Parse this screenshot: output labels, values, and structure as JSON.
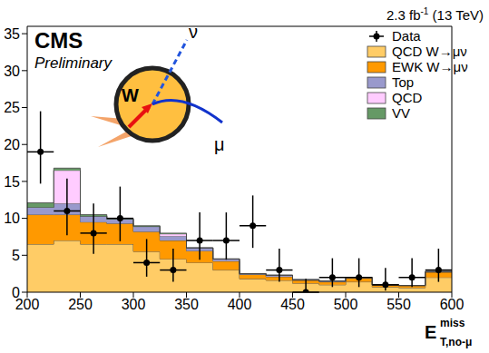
{
  "chart_data": {
    "type": "histogram",
    "title": "CMS",
    "subtitle": "Preliminary",
    "lumi": {
      "text": "2.3 fb",
      "superscript": "-1",
      "suffix": " (13 TeV)"
    },
    "x_label": {
      "text": "E",
      "superscript": "miss",
      "subscript": "T,no-μ"
    },
    "annotations": {
      "boson": "W",
      "neutrino": "ν",
      "muon": "μ"
    },
    "bins": [
      200,
      225,
      250,
      275,
      300,
      325,
      350,
      375,
      400,
      425,
      450,
      475,
      500,
      525,
      550,
      575,
      600
    ],
    "stacked": true,
    "grid": false,
    "legend": "upper right",
    "xlim": [
      200,
      600
    ],
    "xticks": [
      200,
      250,
      300,
      350,
      400,
      450,
      500,
      550,
      600
    ],
    "ylim": [
      0,
      36
    ],
    "yticks": [
      0,
      5,
      10,
      15,
      20,
      25,
      30,
      35
    ],
    "series": [
      {
        "name": "Data",
        "type": "scatter",
        "marker": "circle",
        "color": "#000000",
        "values": [
          19,
          11,
          8,
          10,
          4,
          3,
          7,
          7,
          9,
          3,
          0,
          2,
          2,
          1,
          2,
          3
        ],
        "errors": [
          [
            4.3,
            5.5
          ],
          [
            3.3,
            4.4
          ],
          [
            2.8,
            4.0
          ],
          [
            3.1,
            4.3
          ],
          [
            1.9,
            3.2
          ],
          [
            1.6,
            2.9
          ],
          [
            2.6,
            3.8
          ],
          [
            2.6,
            3.8
          ],
          [
            3.0,
            4.1
          ],
          [
            1.6,
            2.9
          ],
          [
            0,
            1.8
          ],
          [
            1.3,
            2.6
          ],
          [
            1.3,
            2.6
          ],
          [
            0.8,
            2.3
          ],
          [
            1.3,
            2.6
          ],
          [
            1.6,
            2.9
          ]
        ]
      },
      {
        "name": "QCD W→μν",
        "type": "area",
        "color": "#ffcc66",
        "values": [
          6.5,
          7.0,
          6.5,
          6.5,
          5.5,
          4.5,
          4.0,
          3.0,
          1.8,
          1.6,
          1.2,
          1.0,
          1.4,
          0.7,
          0.6,
          2.0
        ]
      },
      {
        "name": "EWK W→μν",
        "type": "area",
        "color": "#ff9900",
        "values": [
          4.0,
          3.5,
          3.0,
          2.8,
          2.7,
          2.5,
          1.6,
          1.2,
          0.6,
          0.5,
          0.4,
          0.4,
          0.5,
          0.3,
          0.3,
          0.7
        ]
      },
      {
        "name": "Top",
        "type": "area",
        "color": "#9999cc",
        "values": [
          1.0,
          1.5,
          0.8,
          0.6,
          0.7,
          0.6,
          0.4,
          0.3,
          0.1,
          0.2,
          0.1,
          0.1,
          0.1,
          0,
          0,
          0.1
        ]
      },
      {
        "name": "QCD",
        "type": "area",
        "color": "#ffccff",
        "values": [
          0,
          4.5,
          0,
          0,
          0,
          0.3,
          0,
          0,
          0,
          0,
          0,
          0,
          0,
          0,
          0,
          0
        ]
      },
      {
        "name": "VV",
        "type": "area",
        "color": "#669966",
        "values": [
          0.6,
          0.3,
          0.2,
          0.1,
          0.1,
          0.1,
          0,
          0,
          0,
          0,
          0,
          0,
          0,
          0,
          0,
          0
        ]
      }
    ]
  }
}
